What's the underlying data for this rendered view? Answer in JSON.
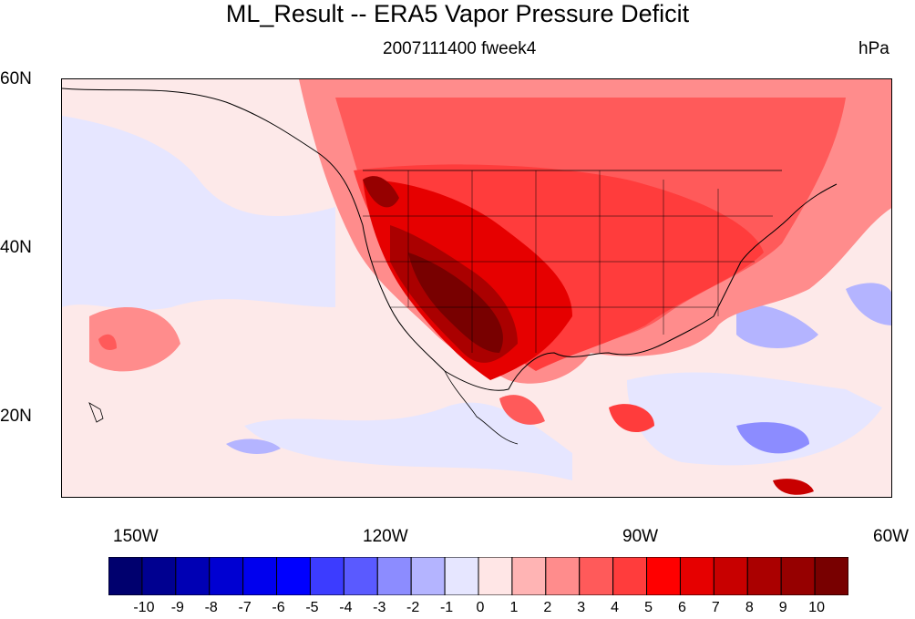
{
  "title": "ML_Result -- ERA5 Vapor Pressure Deficit",
  "subtitle": "2007111400 fweek4",
  "units": "hPa",
  "lat_labels": [
    "60N",
    "40N",
    "20N"
  ],
  "lon_labels": [
    "150W",
    "120W",
    "90W",
    "60W"
  ],
  "colorbar": {
    "labels": [
      "-10",
      "-9",
      "-8",
      "-7",
      "-6",
      "-5",
      "-4",
      "-3",
      "-2",
      "-1",
      "0",
      "1",
      "2",
      "3",
      "4",
      "5",
      "6",
      "7",
      "8",
      "9",
      "10"
    ],
    "colors": [
      "#00006e",
      "#000090",
      "#0000b4",
      "#0000d2",
      "#0000ee",
      "#0000ff",
      "#3c3cff",
      "#5a5aff",
      "#8c8cff",
      "#b4b4ff",
      "#e6e6ff",
      "#ffe6e6",
      "#ffb4b4",
      "#ff8c8c",
      "#ff5a5a",
      "#ff3c3c",
      "#ff0000",
      "#e60000",
      "#c80000",
      "#aa0000",
      "#960000",
      "#780000"
    ]
  }
}
